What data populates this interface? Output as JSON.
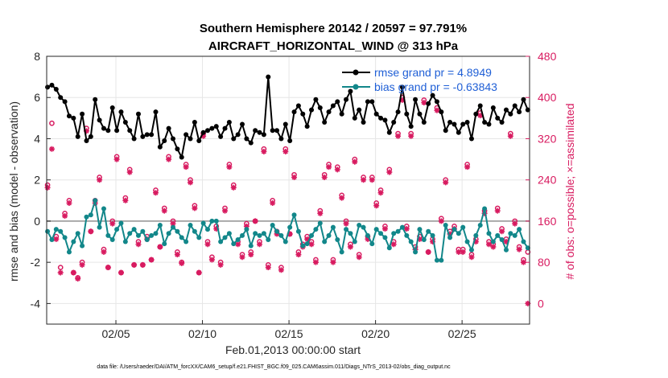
{
  "chart_data": {
    "type": "line",
    "title": "Southern Hemisphere 20142 / 20597 = 97.791%",
    "subtitle": "AIRCRAFT_HORIZONTAL_WIND @ 313 hPa",
    "xlabel": "Feb.01,2013 00:00:00 start",
    "ylabel_left": "rmse and bias (model - observation)",
    "ylabel_right": "# of obs: o=possible; ×=assimilated",
    "footnote": "data file: /Users/raeder/DAI/ATM_forcXX/CAM6_setup/f.e21.FHIST_BGC.f09_025.CAM6assim.011/Diags_NTrS_2013-02/obs_diag_output.nc",
    "xlim": [
      1.0,
      28.9
    ],
    "ylim_left": [
      -5,
      8
    ],
    "ylim_right": [
      -40,
      480
    ],
    "xticks": [
      {
        "value": 5,
        "label": "02/05"
      },
      {
        "value": 10,
        "label": "02/10"
      },
      {
        "value": 15,
        "label": "02/15"
      },
      {
        "value": 20,
        "label": "02/20"
      },
      {
        "value": 25,
        "label": "02/25"
      }
    ],
    "yticks_left": [
      -4,
      -2,
      0,
      2,
      4,
      6,
      8
    ],
    "yticks_right": [
      0,
      80,
      160,
      240,
      320,
      400,
      480
    ],
    "grid": true,
    "zero_line_color": "#a9a9a9",
    "legend": {
      "position": "top-right",
      "entries": [
        {
          "label": "rmse grand pr = 4.8949",
          "color": "#000000"
        },
        {
          "label": "bias grand pr = -0.63843",
          "color": "#12878a"
        }
      ]
    },
    "series": [
      {
        "name": "rmse",
        "axis": "left",
        "color": "#000000",
        "x": [
          1.05,
          1.3,
          1.55,
          1.8,
          2.05,
          2.3,
          2.55,
          2.8,
          3.05,
          3.3,
          3.55,
          3.8,
          4.05,
          4.3,
          4.55,
          4.8,
          5.05,
          5.3,
          5.55,
          5.8,
          6.05,
          6.3,
          6.55,
          6.8,
          7.05,
          7.3,
          7.55,
          7.8,
          8.05,
          8.3,
          8.55,
          8.8,
          9.05,
          9.3,
          9.55,
          9.8,
          10.05,
          10.3,
          10.55,
          10.8,
          11.05,
          11.3,
          11.55,
          11.8,
          12.05,
          12.3,
          12.55,
          12.8,
          13.05,
          13.3,
          13.55,
          13.8,
          14.05,
          14.3,
          14.55,
          14.8,
          15.05,
          15.3,
          15.55,
          15.8,
          16.05,
          16.3,
          16.55,
          16.8,
          17.05,
          17.3,
          17.55,
          17.8,
          18.05,
          18.3,
          18.55,
          18.8,
          19.05,
          19.3,
          19.55,
          19.8,
          20.05,
          20.3,
          20.55,
          20.8,
          21.05,
          21.3,
          21.55,
          21.8,
          22.05,
          22.3,
          22.55,
          22.8,
          23.05,
          23.3,
          23.55,
          23.8,
          24.05,
          24.3,
          24.55,
          24.8,
          25.05,
          25.3,
          25.55,
          25.8,
          26.05,
          26.3,
          26.55,
          26.8,
          27.05,
          27.3,
          27.55,
          27.8,
          28.05,
          28.3,
          28.55,
          28.8
        ],
        "y": [
          6.5,
          6.6,
          6.4,
          6.0,
          5.8,
          5.1,
          5.0,
          4.1,
          5.2,
          3.9,
          4.1,
          5.9,
          4.9,
          4.5,
          4.4,
          5.5,
          4.4,
          5.3,
          4.8,
          4.4,
          4.0,
          5.2,
          4.1,
          4.2,
          4.2,
          5.3,
          3.6,
          3.9,
          4.5,
          4.0,
          3.5,
          3.1,
          4.2,
          4.0,
          4.8,
          3.9,
          4.3,
          4.4,
          4.5,
          4.6,
          4.1,
          4.5,
          4.8,
          4.0,
          4.2,
          4.7,
          4.0,
          3.8,
          4.4,
          4.3,
          4.2,
          7.0,
          4.4,
          4.4,
          4.0,
          4.7,
          3.9,
          5.3,
          5.6,
          5.2,
          4.6,
          5.4,
          5.9,
          5.5,
          4.8,
          5.3,
          5.6,
          5.8,
          5.2,
          5.9,
          6.3,
          5.0,
          5.4,
          4.8,
          5.8,
          5.8,
          5.2,
          5.0,
          4.9,
          4.3,
          4.8,
          5.3,
          6.5,
          5.2,
          4.6,
          5.9,
          5.2,
          4.8,
          5.7,
          6.1,
          5.8,
          5.3,
          4.4,
          4.8,
          4.7,
          4.3,
          4.7,
          4.8,
          4.0,
          5.2,
          5.6,
          4.8,
          4.7,
          5.5,
          5.0,
          4.8,
          5.4,
          5.2,
          5.6,
          5.3,
          5.9,
          5.4
        ],
        "markers": "filled-circle"
      },
      {
        "name": "bias",
        "axis": "left",
        "color": "#12878a",
        "x": [
          1.05,
          1.3,
          1.55,
          1.8,
          2.05,
          2.3,
          2.55,
          2.8,
          3.05,
          3.3,
          3.55,
          3.8,
          4.05,
          4.3,
          4.55,
          4.8,
          5.05,
          5.3,
          5.55,
          5.8,
          6.05,
          6.3,
          6.55,
          6.8,
          7.05,
          7.3,
          7.55,
          7.8,
          8.05,
          8.3,
          8.55,
          8.8,
          9.05,
          9.3,
          9.55,
          9.8,
          10.05,
          10.3,
          10.55,
          10.8,
          11.05,
          11.3,
          11.55,
          11.8,
          12.05,
          12.3,
          12.55,
          12.8,
          13.05,
          13.3,
          13.55,
          13.8,
          14.05,
          14.3,
          14.55,
          14.8,
          15.05,
          15.3,
          15.55,
          15.8,
          16.05,
          16.3,
          16.55,
          16.8,
          17.05,
          17.3,
          17.55,
          17.8,
          18.05,
          18.3,
          18.55,
          18.8,
          19.05,
          19.3,
          19.55,
          19.8,
          20.05,
          20.3,
          20.55,
          20.8,
          21.05,
          21.3,
          21.55,
          21.8,
          22.05,
          22.3,
          22.55,
          22.8,
          23.05,
          23.3,
          23.55,
          23.8,
          24.05,
          24.3,
          24.55,
          24.8,
          25.05,
          25.3,
          25.55,
          25.8,
          26.05,
          26.3,
          26.55,
          26.8,
          27.05,
          27.3,
          27.55,
          27.8,
          28.05,
          28.3,
          28.55,
          28.8
        ],
        "y": [
          -0.5,
          -0.9,
          -0.4,
          -0.5,
          -0.8,
          -1.5,
          -1.0,
          -0.6,
          -1.2,
          0.2,
          0.3,
          1.0,
          -0.3,
          0.6,
          -0.7,
          -0.9,
          -0.4,
          -0.1,
          -1.0,
          -0.6,
          -0.4,
          -0.7,
          -0.5,
          -0.9,
          -0.7,
          -0.6,
          -0.2,
          -1.1,
          -0.6,
          -0.3,
          -0.5,
          -0.8,
          -1.0,
          -0.2,
          -0.5,
          -0.8,
          -0.1,
          -0.4,
          0.0,
          0.0,
          -1.0,
          -0.8,
          -0.6,
          -1.1,
          -0.9,
          -0.7,
          -0.4,
          -1.2,
          -0.6,
          -0.7,
          -0.6,
          -0.9,
          -0.2,
          -0.5,
          -0.7,
          -1.0,
          -0.3,
          0.3,
          -0.5,
          -1.2,
          -1.1,
          -0.7,
          -0.4,
          -0.1,
          -1.0,
          -0.7,
          -0.3,
          -0.9,
          -1.5,
          -0.4,
          -0.6,
          -1.0,
          -0.2,
          -0.3,
          -0.7,
          -1.1,
          -0.4,
          -0.6,
          -0.8,
          -1.3,
          -0.6,
          -0.5,
          -0.3,
          -0.7,
          -1.0,
          -1.5,
          -0.4,
          -0.9,
          -0.5,
          -0.7,
          -1.9,
          -1.9,
          -0.2,
          -0.8,
          -0.4,
          -0.6,
          -0.3,
          -1.0,
          -1.4,
          -0.7,
          -0.2,
          0.6,
          -0.6,
          -1.0,
          -0.7,
          -0.9,
          -1.4,
          -0.6,
          -0.7,
          -0.4,
          -1.0,
          -1.3
        ],
        "markers": "filled-circle"
      },
      {
        "name": "possible",
        "axis": "right",
        "color": "#d81b60",
        "x": [
          1.05,
          1.3,
          1.55,
          1.8,
          2.05,
          2.3,
          2.55,
          2.8,
          3.05,
          3.3,
          3.55,
          3.8,
          4.05,
          4.3,
          4.55,
          4.8,
          5.05,
          5.3,
          5.55,
          5.8,
          6.05,
          6.3,
          6.55,
          6.8,
          7.05,
          7.3,
          7.55,
          7.8,
          8.05,
          8.3,
          8.55,
          8.8,
          9.05,
          9.3,
          9.55,
          9.8,
          10.05,
          10.3,
          10.55,
          10.8,
          11.05,
          11.3,
          11.55,
          11.8,
          12.05,
          12.3,
          12.55,
          12.8,
          13.05,
          13.3,
          13.55,
          13.8,
          14.05,
          14.3,
          14.55,
          14.8,
          15.05,
          15.3,
          15.55,
          15.8,
          16.05,
          16.3,
          16.55,
          16.8,
          17.05,
          17.3,
          17.55,
          17.8,
          18.05,
          18.3,
          18.55,
          18.8,
          19.05,
          19.3,
          19.55,
          19.8,
          20.05,
          20.3,
          20.55,
          20.8,
          21.05,
          21.3,
          21.55,
          21.8,
          22.05,
          22.3,
          22.55,
          22.8,
          23.05,
          23.3,
          23.55,
          23.8,
          24.05,
          24.3,
          24.55,
          24.8,
          25.05,
          25.3,
          25.55,
          25.8,
          26.05,
          26.3,
          26.55,
          26.8,
          27.05,
          27.3,
          27.55,
          27.8,
          28.05,
          28.3,
          28.55,
          28.8
        ],
        "y": [
          230,
          350,
          130,
          70,
          175,
          200,
          60,
          50,
          80,
          340,
          140,
          200,
          245,
          105,
          70,
          160,
          285,
          60,
          205,
          260,
          75,
          120,
          75,
          130,
          85,
          220,
          110,
          185,
          285,
          160,
          100,
          80,
          270,
          240,
          190,
          60,
          330,
          120,
          90,
          150,
          80,
          185,
          270,
          230,
          120,
          95,
          155,
          100,
          160,
          120,
          300,
          75,
          200,
          140,
          70,
          300,
          135,
          250,
          100,
          115,
          130,
          120,
          85,
          180,
          250,
          270,
          85,
          265,
          210,
          160,
          115,
          280,
          95,
          245,
          130,
          245,
          195,
          220,
          150,
          260,
          120,
          330,
          400,
          150,
          330,
          110,
          130,
          395,
          100,
          125,
          380,
          165,
          240,
          140,
          150,
          105,
          105,
          270,
          95,
          125,
          370,
          180,
          120,
          115,
          185,
          145,
          125,
          330,
          160,
          110,
          85,
          100
        ],
        "markers": "open-circle"
      },
      {
        "name": "assimilated",
        "axis": "right",
        "color": "#d81b60",
        "x": [
          1.05,
          1.3,
          1.55,
          1.8,
          2.05,
          2.3,
          2.55,
          2.8,
          3.05,
          3.3,
          3.55,
          3.8,
          4.05,
          4.3,
          4.55,
          4.8,
          5.05,
          5.3,
          5.55,
          5.8,
          6.05,
          6.3,
          6.55,
          6.8,
          7.05,
          7.3,
          7.55,
          7.8,
          8.05,
          8.3,
          8.55,
          8.8,
          9.05,
          9.3,
          9.55,
          9.8,
          10.05,
          10.3,
          10.55,
          10.8,
          11.05,
          11.3,
          11.55,
          11.8,
          12.05,
          12.3,
          12.55,
          12.8,
          13.05,
          13.3,
          13.55,
          13.8,
          14.05,
          14.3,
          14.55,
          14.8,
          15.05,
          15.3,
          15.55,
          15.8,
          16.05,
          16.3,
          16.55,
          16.8,
          17.05,
          17.3,
          17.55,
          17.8,
          18.05,
          18.3,
          18.55,
          18.8,
          19.05,
          19.3,
          19.55,
          19.8,
          20.05,
          20.3,
          20.55,
          20.8,
          21.05,
          21.3,
          21.55,
          21.8,
          22.05,
          22.3,
          22.55,
          22.8,
          23.05,
          23.3,
          23.55,
          23.8,
          24.05,
          24.3,
          24.55,
          24.8,
          25.05,
          25.3,
          25.55,
          25.8,
          26.05,
          26.3,
          26.55,
          26.8,
          27.05,
          27.3,
          27.55,
          27.8,
          28.05,
          28.3,
          28.55,
          28.8
        ],
        "y": [
          225,
          300,
          125,
          60,
          170,
          195,
          60,
          48,
          75,
          335,
          140,
          195,
          240,
          100,
          70,
          155,
          280,
          60,
          200,
          255,
          75,
          115,
          75,
          125,
          85,
          215,
          110,
          180,
          280,
          155,
          95,
          78,
          265,
          235,
          185,
          60,
          325,
          115,
          85,
          145,
          75,
          180,
          265,
          225,
          115,
          90,
          150,
          95,
          160,
          115,
          295,
          70,
          195,
          135,
          65,
          295,
          135,
          245,
          95,
          110,
          125,
          115,
          80,
          175,
          245,
          265,
          80,
          260,
          205,
          155,
          110,
          275,
          90,
          240,
          125,
          240,
          190,
          215,
          145,
          255,
          115,
          325,
          395,
          145,
          325,
          105,
          125,
          390,
          100,
          120,
          375,
          160,
          235,
          135,
          145,
          100,
          100,
          265,
          90,
          120,
          365,
          175,
          115,
          110,
          180,
          140,
          120,
          325,
          155,
          105,
          80,
          0
        ],
        "markers": "asterisk"
      }
    ]
  }
}
